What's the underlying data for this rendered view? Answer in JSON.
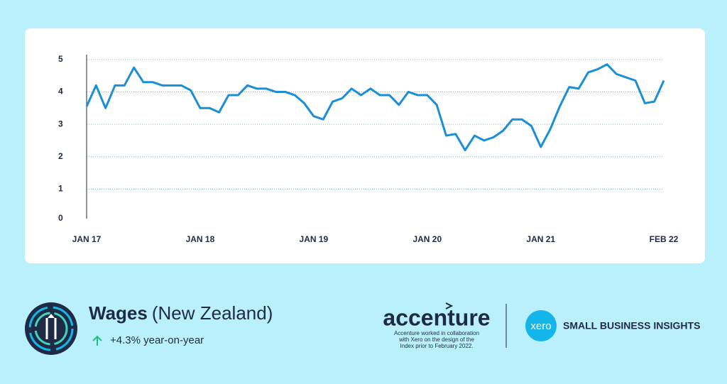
{
  "chart_data": {
    "type": "line",
    "categories": [
      "JAN 17",
      null,
      null,
      null,
      null,
      null,
      null,
      null,
      null,
      null,
      null,
      null,
      "JAN 18",
      null,
      null,
      null,
      null,
      null,
      null,
      null,
      null,
      null,
      null,
      null,
      "JAN 19",
      null,
      null,
      null,
      null,
      null,
      null,
      null,
      null,
      null,
      null,
      null,
      "JAN 20",
      null,
      null,
      null,
      null,
      null,
      null,
      null,
      null,
      null,
      null,
      null,
      "JAN 21",
      null,
      null,
      null,
      null,
      null,
      null,
      null,
      null,
      null,
      null,
      null,
      null,
      "FEB 22"
    ],
    "series": [
      {
        "name": "Wages",
        "color": "#1a8fd6",
        "values": [
          3.55,
          4.2,
          3.5,
          4.2,
          4.2,
          4.75,
          4.3,
          4.3,
          4.2,
          4.2,
          4.2,
          4.05,
          3.5,
          3.5,
          3.37,
          3.9,
          3.9,
          4.2,
          4.1,
          4.1,
          4.0,
          4.0,
          3.9,
          3.65,
          3.25,
          3.15,
          3.7,
          3.8,
          4.1,
          3.9,
          4.1,
          3.9,
          3.9,
          3.6,
          4.0,
          3.9,
          3.9,
          3.6,
          2.65,
          2.7,
          2.2,
          2.65,
          2.5,
          2.6,
          2.8,
          3.15,
          3.15,
          2.95,
          2.3,
          2.85,
          3.55,
          4.15,
          4.1,
          4.6,
          4.7,
          4.85,
          4.55,
          4.45,
          4.35,
          3.65,
          3.7,
          4.35
        ]
      }
    ],
    "ylim": [
      0,
      5.15
    ],
    "yticks": [
      0,
      1,
      2,
      3,
      4,
      5
    ],
    "grid": true
  },
  "header": {
    "title": "Wages",
    "subtitle": "(New Zealand)",
    "change": "+4.3% year-on-year"
  },
  "footer": {
    "partner": "accenture",
    "partner_note": [
      "Accenture worked in collaboration",
      "with Xero on the design of the",
      "Index prior to February 2022."
    ],
    "brand_logo": "xero",
    "brand": "SMALL BUSINESS INSIGHTS"
  }
}
